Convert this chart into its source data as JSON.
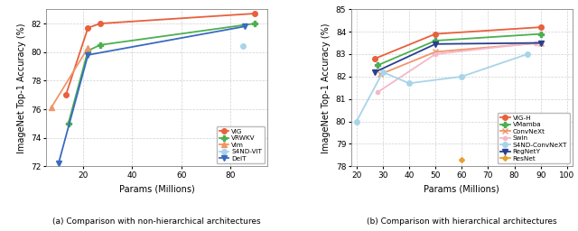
{
  "left": {
    "title": "(a) Comparison with non-hierarchical architectures",
    "xlabel": "Params (Millions)",
    "ylabel": "ImageNet Top-1 Accuracy (%)",
    "xlim": [
      5,
      95
    ],
    "ylim": [
      72,
      83
    ],
    "yticks": [
      72,
      74,
      76,
      78,
      80,
      82
    ],
    "xticks": [
      20,
      40,
      60,
      80
    ],
    "series": [
      {
        "label": "ViG",
        "x": [
          13,
          22,
          27,
          90
        ],
        "y": [
          77.0,
          81.7,
          82.0,
          82.7
        ],
        "color": "#e8603c",
        "marker": "o",
        "linewidth": 1.3,
        "markersize": 4,
        "alpha": 1.0
      },
      {
        "label": "VRWKV",
        "x": [
          14,
          22,
          27,
          90
        ],
        "y": [
          75.0,
          80.1,
          80.5,
          82.0
        ],
        "color": "#4caf50",
        "marker": "P",
        "linewidth": 1.3,
        "markersize": 4,
        "alpha": 1.0
      },
      {
        "label": "Vim",
        "x": [
          7,
          22
        ],
        "y": [
          76.1,
          80.3
        ],
        "color": "#f0956a",
        "marker": "^",
        "linewidth": 1.3,
        "markersize": 4,
        "alpha": 1.0
      },
      {
        "label": "S4ND-ViT",
        "x": [
          85
        ],
        "y": [
          80.4
        ],
        "color": "#a8d4e8",
        "marker": "o",
        "linewidth": 1.3,
        "markersize": 4,
        "alpha": 1.0
      },
      {
        "label": "DeiT",
        "x": [
          10,
          22,
          86
        ],
        "y": [
          72.2,
          79.8,
          81.8
        ],
        "color": "#3a6abf",
        "marker": "v",
        "linewidth": 1.3,
        "markersize": 4,
        "alpha": 1.0
      }
    ]
  },
  "right": {
    "title": "(b) Comparison with hierarchical architectures",
    "xlabel": "Params (Millions)",
    "ylabel": "ImageNet Top-1 Accuracy (%)",
    "xlim": [
      18,
      102
    ],
    "ylim": [
      78,
      85
    ],
    "yticks": [
      78,
      79,
      80,
      81,
      82,
      83,
      84,
      85
    ],
    "xticks": [
      20,
      30,
      40,
      50,
      60,
      70,
      80,
      90,
      100
    ],
    "series": [
      {
        "label": "ViG-H",
        "x": [
          27,
          50,
          90
        ],
        "y": [
          82.8,
          83.9,
          84.2
        ],
        "color": "#e8603c",
        "marker": "o",
        "linewidth": 1.3,
        "markersize": 4,
        "alpha": 1.0
      },
      {
        "label": "VMamba",
        "x": [
          28,
          50,
          90
        ],
        "y": [
          82.5,
          83.6,
          83.9
        ],
        "color": "#4caf50",
        "marker": "P",
        "linewidth": 1.3,
        "markersize": 4,
        "alpha": 1.0
      },
      {
        "label": "ConvNeXt",
        "x": [
          29,
          50,
          90
        ],
        "y": [
          82.1,
          83.1,
          83.5
        ],
        "color": "#f0956a",
        "marker": "x",
        "linewidth": 1.3,
        "markersize": 4,
        "alpha": 1.0
      },
      {
        "label": "Swin",
        "x": [
          28,
          50,
          88
        ],
        "y": [
          81.3,
          83.0,
          83.5
        ],
        "color": "#f4b8c8",
        "marker": "o",
        "linewidth": 1.3,
        "markersize": 3,
        "alpha": 1.0
      },
      {
        "label": "S4ND-ConvNeXT",
        "x": [
          20,
          30,
          40,
          60,
          85
        ],
        "y": [
          80.0,
          82.2,
          81.7,
          82.0,
          83.0
        ],
        "color": "#a8d4e8",
        "marker": "o",
        "linewidth": 1.3,
        "markersize": 4,
        "alpha": 1.0
      },
      {
        "label": "RegNetY",
        "x": [
          27,
          50,
          90
        ],
        "y": [
          82.2,
          83.45,
          83.5
        ],
        "color": "#2a3f8f",
        "marker": "v",
        "linewidth": 1.3,
        "markersize": 4,
        "alpha": 1.0
      },
      {
        "label": "ResNet",
        "x": [
          60
        ],
        "y": [
          78.3
        ],
        "color": "#e8a030",
        "marker": "D",
        "linewidth": 1.3,
        "markersize": 3,
        "alpha": 1.0
      }
    ]
  }
}
